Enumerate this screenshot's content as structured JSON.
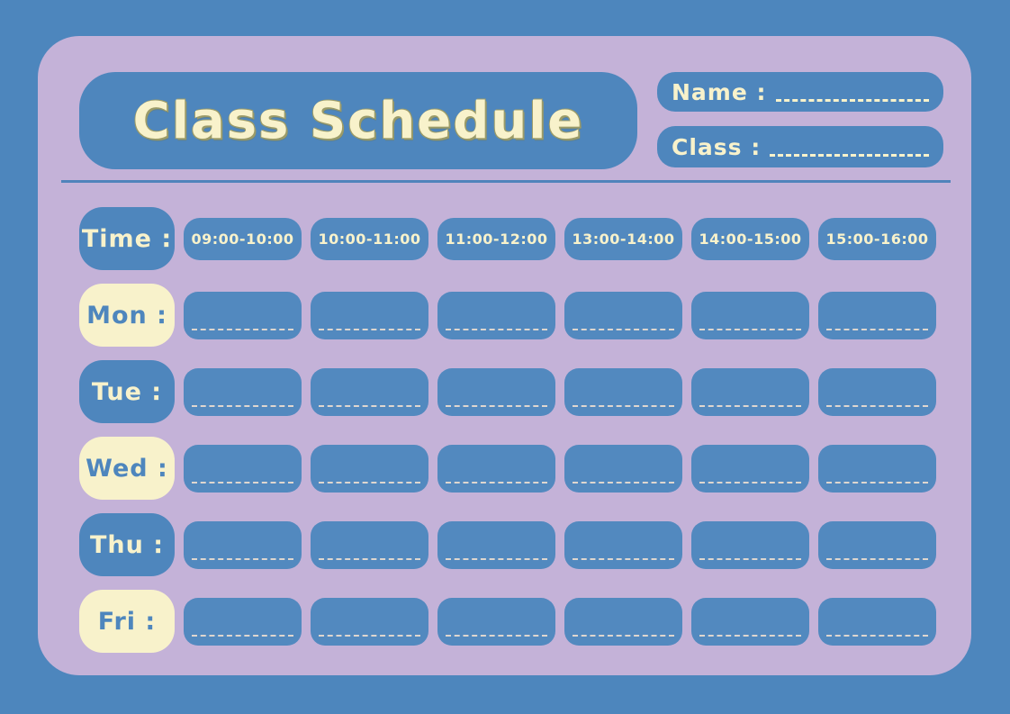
{
  "header": {
    "title": "Class Schedule",
    "name_label": "Name :",
    "name_value": "",
    "class_label": "Class :",
    "class_value": ""
  },
  "schedule": {
    "time_header_label": "Time :",
    "time_slots": [
      "09:00-10:00",
      "10:00-11:00",
      "11:00-12:00",
      "13:00-14:00",
      "14:00-15:00",
      "15:00-16:00"
    ],
    "days": [
      {
        "label": "Mon :",
        "style": "cream",
        "entries": [
          "",
          "",
          "",
          "",
          "",
          ""
        ]
      },
      {
        "label": "Tue :",
        "style": "blue",
        "entries": [
          "",
          "",
          "",
          "",
          "",
          ""
        ]
      },
      {
        "label": "Wed :",
        "style": "cream",
        "entries": [
          "",
          "",
          "",
          "",
          "",
          ""
        ]
      },
      {
        "label": "Thu :",
        "style": "blue",
        "entries": [
          "",
          "",
          "",
          "",
          "",
          ""
        ]
      },
      {
        "label": "Fri :",
        "style": "cream",
        "entries": [
          "",
          "",
          "",
          "",
          "",
          ""
        ]
      }
    ]
  },
  "colors": {
    "outer_background": "#4d86bd",
    "panel_background": "#c4b2d8",
    "box_blue": "#4e86bd",
    "cell_blue": "#5289bf",
    "cream": "#f8f2cb",
    "blue_text": "#4e86bd",
    "divider": "#5083bb",
    "cell_dash": "#ded6cf",
    "field_dash": "#f8f2cb",
    "title_shadow": "#9b9b68"
  }
}
